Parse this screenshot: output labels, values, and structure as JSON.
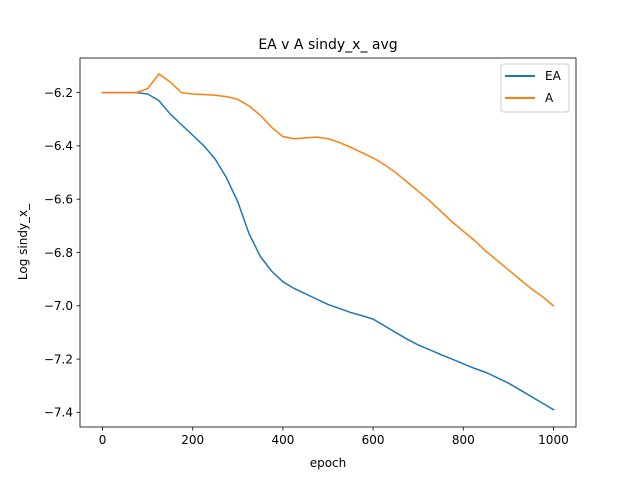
{
  "chart_data": {
    "type": "line",
    "title": "EA v A sindy_x_ avg",
    "xlabel": "epoch",
    "ylabel": "Log sindy_x_",
    "xlim": [
      -50,
      1050
    ],
    "ylim": [
      -7.455,
      -6.07
    ],
    "xticks": [
      0,
      200,
      400,
      600,
      800,
      1000
    ],
    "yticks": [
      -7.4,
      -7.2,
      -7.0,
      -6.8,
      -6.6,
      -6.4,
      -6.2
    ],
    "xtick_labels": [
      "0",
      "200",
      "400",
      "600",
      "800",
      "1000"
    ],
    "ytick_labels": [
      "−7.4",
      "−7.2",
      "−7.0",
      "−6.8",
      "−6.6",
      "−6.4",
      "−6.2"
    ],
    "grid": false,
    "legend_position": "top-right",
    "series": [
      {
        "name": "EA",
        "color": "#1f77b4",
        "x": [
          0,
          25,
          50,
          75,
          100,
          125,
          150,
          175,
          200,
          225,
          250,
          275,
          300,
          325,
          350,
          375,
          400,
          425,
          450,
          475,
          500,
          525,
          550,
          575,
          600,
          625,
          650,
          675,
          700,
          725,
          750,
          775,
          800,
          825,
          850,
          875,
          900,
          925,
          950,
          975,
          1000
        ],
        "values": [
          -6.2,
          -6.2,
          -6.2,
          -6.2,
          -6.205,
          -6.23,
          -6.28,
          -6.32,
          -6.36,
          -6.4,
          -6.45,
          -6.52,
          -6.61,
          -6.73,
          -6.815,
          -6.87,
          -6.91,
          -6.935,
          -6.955,
          -6.975,
          -6.995,
          -7.01,
          -7.025,
          -7.037,
          -7.05,
          -7.075,
          -7.1,
          -7.125,
          -7.147,
          -7.165,
          -7.183,
          -7.2,
          -7.218,
          -7.235,
          -7.25,
          -7.27,
          -7.29,
          -7.315,
          -7.34,
          -7.365,
          -7.39
        ]
      },
      {
        "name": "A",
        "color": "#ff7f0e",
        "x": [
          0,
          25,
          50,
          75,
          100,
          125,
          150,
          175,
          200,
          225,
          250,
          275,
          300,
          325,
          350,
          375,
          400,
          425,
          450,
          475,
          500,
          525,
          550,
          575,
          600,
          625,
          650,
          675,
          700,
          725,
          750,
          775,
          800,
          825,
          850,
          875,
          900,
          925,
          950,
          975,
          1000
        ],
        "values": [
          -6.2,
          -6.2,
          -6.2,
          -6.2,
          -6.185,
          -6.13,
          -6.16,
          -6.2,
          -6.205,
          -6.207,
          -6.21,
          -6.215,
          -6.225,
          -6.25,
          -6.285,
          -6.33,
          -6.365,
          -6.373,
          -6.37,
          -6.367,
          -6.373,
          -6.387,
          -6.405,
          -6.425,
          -6.445,
          -6.47,
          -6.5,
          -6.535,
          -6.57,
          -6.605,
          -6.645,
          -6.685,
          -6.72,
          -6.755,
          -6.795,
          -6.83,
          -6.865,
          -6.9,
          -6.935,
          -6.965,
          -7.0
        ]
      }
    ]
  }
}
